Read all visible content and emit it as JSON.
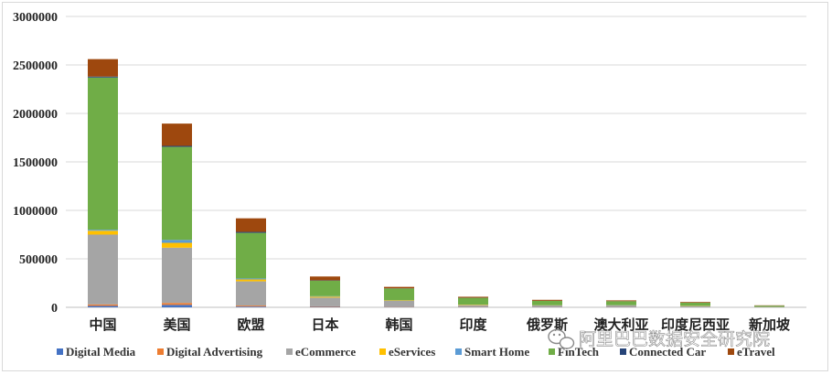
{
  "chart_data": {
    "type": "bar",
    "stacked": true,
    "categories": [
      "中国",
      "美国",
      "欧盟",
      "日本",
      "韩国",
      "印度",
      "俄罗斯",
      "澳大利亚",
      "印度尼西亚",
      "新加坡"
    ],
    "ylim": [
      0,
      3000000
    ],
    "yticks": [
      "0",
      "500000",
      "1000000",
      "1500000",
      "2000000",
      "2500000",
      "3000000"
    ],
    "ytick_values": [
      0,
      500000,
      1000000,
      1500000,
      2000000,
      2500000,
      3000000
    ],
    "grid": true,
    "legend_position": "bottom",
    "series": [
      {
        "name": "Digital Media",
        "color": "#4472c4",
        "values": [
          15000,
          25000,
          8000,
          5000,
          3000,
          2000,
          2000,
          2000,
          1500,
          500
        ]
      },
      {
        "name": "Digital Advertising",
        "color": "#ed7d31",
        "values": [
          15000,
          20000,
          10000,
          5000,
          3000,
          2000,
          1500,
          1500,
          1000,
          500
        ]
      },
      {
        "name": "eCommerce",
        "color": "#a5a5a5",
        "values": [
          720000,
          570000,
          250000,
          90000,
          60000,
          18000,
          15000,
          15000,
          10000,
          3000
        ]
      },
      {
        "name": "eServices",
        "color": "#ffc000",
        "values": [
          40000,
          50000,
          20000,
          10000,
          5000,
          5000,
          2000,
          2000,
          2000,
          500
        ]
      },
      {
        "name": "Smart Home",
        "color": "#5b9bd5",
        "values": [
          10000,
          30000,
          10000,
          5000,
          3000,
          1000,
          1000,
          2000,
          500,
          500
        ]
      },
      {
        "name": "FinTech",
        "color": "#70ad47",
        "values": [
          1570000,
          960000,
          470000,
          160000,
          120000,
          70000,
          45000,
          40000,
          32000,
          12000
        ]
      },
      {
        "name": "Connected Car",
        "color": "#264478",
        "values": [
          10000,
          10000,
          10000,
          3000,
          2000,
          1000,
          1000,
          1000,
          1000,
          500
        ]
      },
      {
        "name": "eTravel",
        "color": "#9e480e",
        "values": [
          180000,
          230000,
          140000,
          40000,
          15000,
          10000,
          10000,
          8000,
          7000,
          3000
        ]
      }
    ]
  },
  "watermark": {
    "text": "阿里巴巴数据安全研究院",
    "icon": "wechat-icon"
  }
}
